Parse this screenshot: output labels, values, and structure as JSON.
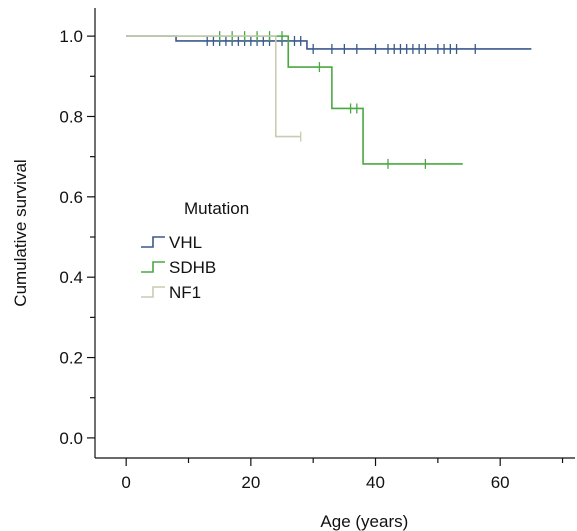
{
  "chart_data": {
    "type": "line",
    "title": "",
    "xlabel": "Age (years)",
    "ylabel": "Cumulative survival",
    "xlim": [
      -5,
      72
    ],
    "ylim": [
      -0.05,
      1.07
    ],
    "xticks": [
      0,
      20,
      40,
      60
    ],
    "xtick_labels": [
      "0",
      "20",
      "40",
      "60"
    ],
    "xminor": [
      10,
      30,
      50,
      70
    ],
    "yticks": [
      0.0,
      0.2,
      0.4,
      0.6,
      0.8,
      1.0
    ],
    "ytick_labels": [
      "0.0",
      "0.2",
      "0.4",
      "0.6",
      "0.8",
      "1.0"
    ],
    "yminor": [
      0.1,
      0.3,
      0.5,
      0.7,
      0.9
    ],
    "grid": false,
    "legend": {
      "title": "Mutation",
      "position": "middle-left"
    },
    "series": [
      {
        "name": "VHL",
        "color": "#3a5a8c",
        "steps": [
          [
            0,
            1.0
          ],
          [
            8,
            0.988
          ],
          [
            29,
            0.968
          ],
          [
            65,
            0.968
          ]
        ],
        "censored": [
          13,
          14,
          15,
          16,
          17,
          18,
          19,
          20,
          21,
          22,
          23,
          24,
          25,
          26,
          27,
          28,
          30,
          33,
          35,
          37,
          40,
          42,
          43,
          44,
          45,
          46,
          47,
          48,
          50,
          51,
          52,
          53,
          56
        ]
      },
      {
        "name": "SDHB",
        "color": "#4aa842",
        "steps": [
          [
            0,
            1.0
          ],
          [
            26,
            0.923
          ],
          [
            33,
            0.82
          ],
          [
            38,
            0.682
          ],
          [
            54,
            0.682
          ]
        ],
        "censored": [
          15,
          17,
          19,
          21,
          23,
          25,
          31,
          36,
          37,
          42,
          48
        ]
      },
      {
        "name": "NF1",
        "color": "#c9cbb3",
        "steps": [
          [
            0,
            1.0
          ],
          [
            24,
            0.75
          ],
          [
            28,
            0.75
          ]
        ],
        "censored": [
          28
        ]
      }
    ]
  }
}
